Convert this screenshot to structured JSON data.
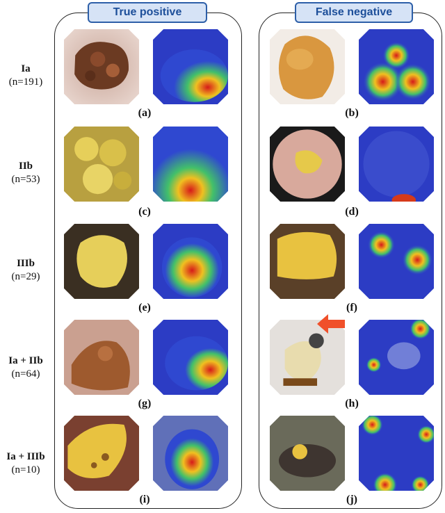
{
  "headers": {
    "left": "True positive",
    "right": "False negative"
  },
  "rows": [
    {
      "class": "Ia",
      "count": "(n=191)",
      "tp_caption": "(a)",
      "fn_caption": "(b)"
    },
    {
      "class": "IIb",
      "count": "(n=53)",
      "tp_caption": "(c)",
      "fn_caption": "(d)"
    },
    {
      "class": "IIIb",
      "count": "(n=29)",
      "tp_caption": "(e)",
      "fn_caption": "(f)"
    },
    {
      "class": "Ia + IIb",
      "count": "(n=64)",
      "tp_caption": "(g)",
      "fn_caption": "(h)"
    },
    {
      "class": "Ia + IIIb",
      "count": "(n=10)",
      "tp_caption": "(i)",
      "fn_caption": "(j)"
    }
  ],
  "annotations": {
    "arrow_color": "#f0502a"
  },
  "colors": {
    "badge_fill": "#d6e3f6",
    "badge_border": "#2d5fa8",
    "badge_text": "#1d4f9a"
  }
}
